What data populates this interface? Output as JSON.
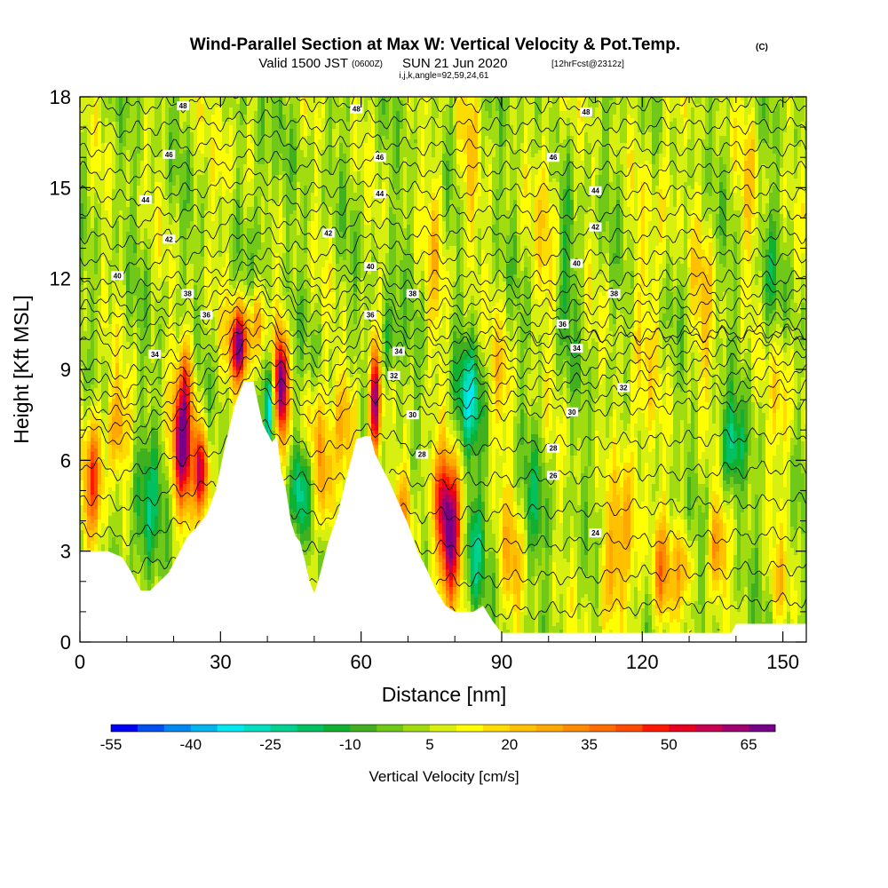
{
  "header": {
    "title": "Wind-Parallel Section at Max W: Vertical Velocity & Pot.Temp.",
    "title_mark": "(C)",
    "valid_prefix": "Valid 1500 JST",
    "valid_z": "(0600Z)",
    "valid_date": "SUN 21 Jun 2020",
    "forecast": "[12hrFcst@2312z]",
    "indices": "i,j,k,angle=92,59,24,61"
  },
  "chart_data": {
    "type": "heatmap",
    "xlabel": "Distance [nm]",
    "ylabel": "Height [Kft MSL]",
    "xlim": [
      0,
      155
    ],
    "ylim": [
      0,
      18
    ],
    "x_ticks": [
      "0",
      "30",
      "60",
      "90",
      "120",
      "150"
    ],
    "x_tick_values": [
      0,
      30,
      60,
      90,
      120,
      150
    ],
    "y_ticks": [
      "0",
      "3",
      "6",
      "9",
      "12",
      "15",
      "18"
    ],
    "y_tick_values": [
      0,
      3,
      6,
      9,
      12,
      15,
      18
    ],
    "terrain": [
      [
        0,
        3.0
      ],
      [
        3,
        3.0
      ],
      [
        6,
        3.0
      ],
      [
        9,
        2.8
      ],
      [
        11,
        2.3
      ],
      [
        13,
        1.7
      ],
      [
        15,
        1.7
      ],
      [
        17,
        2.0
      ],
      [
        19,
        2.3
      ],
      [
        21,
        2.9
      ],
      [
        23,
        3.5
      ],
      [
        25,
        3.8
      ],
      [
        27,
        4.2
      ],
      [
        29,
        5.0
      ],
      [
        31,
        6.5
      ],
      [
        33,
        7.8
      ],
      [
        35,
        8.6
      ],
      [
        37,
        8.6
      ],
      [
        39,
        7.2
      ],
      [
        41,
        6.6
      ],
      [
        42,
        6.8
      ],
      [
        43,
        5.6
      ],
      [
        44,
        5.0
      ],
      [
        45,
        4.0
      ],
      [
        46,
        3.5
      ],
      [
        47,
        3.3
      ],
      [
        48,
        2.7
      ],
      [
        49,
        2.0
      ],
      [
        50,
        1.6
      ],
      [
        51,
        2.1
      ],
      [
        53,
        3.3
      ],
      [
        55,
        4.2
      ],
      [
        57,
        5.5
      ],
      [
        59,
        6.7
      ],
      [
        61,
        6.8
      ],
      [
        62,
        6.8
      ],
      [
        63,
        6.2
      ],
      [
        65,
        5.6
      ],
      [
        66,
        5.3
      ],
      [
        68,
        4.6
      ],
      [
        70,
        3.9
      ],
      [
        72,
        3.0
      ],
      [
        74,
        2.4
      ],
      [
        76,
        1.7
      ],
      [
        78,
        1.2
      ],
      [
        80,
        1.0
      ],
      [
        84,
        1.0
      ],
      [
        86,
        1.2
      ],
      [
        88,
        0.7
      ],
      [
        90,
        0.3
      ],
      [
        100,
        0.3
      ],
      [
        110,
        0.3
      ],
      [
        120,
        0.3
      ],
      [
        130,
        0.3
      ],
      [
        139,
        0.3
      ],
      [
        140,
        0.6
      ],
      [
        150,
        0.6
      ],
      [
        155,
        0.6
      ]
    ],
    "theta_contours": {
      "units": "C",
      "levels": [
        22,
        24,
        26,
        28,
        30,
        32,
        34,
        36,
        38,
        40,
        42,
        44,
        46,
        48
      ],
      "labels": [
        {
          "text": "48",
          "x": 22,
          "y": 17.7
        },
        {
          "text": "48",
          "x": 59,
          "y": 17.6
        },
        {
          "text": "48",
          "x": 108,
          "y": 17.5
        },
        {
          "text": "46",
          "x": 19,
          "y": 16.1
        },
        {
          "text": "46",
          "x": 64,
          "y": 16.0
        },
        {
          "text": "46",
          "x": 101,
          "y": 16.0
        },
        {
          "text": "44",
          "x": 14,
          "y": 14.6
        },
        {
          "text": "44",
          "x": 64,
          "y": 14.8
        },
        {
          "text": "44",
          "x": 110,
          "y": 14.9
        },
        {
          "text": "42",
          "x": 19,
          "y": 13.3
        },
        {
          "text": "42",
          "x": 53,
          "y": 13.5
        },
        {
          "text": "42",
          "x": 110,
          "y": 13.7
        },
        {
          "text": "40",
          "x": 8,
          "y": 12.1
        },
        {
          "text": "40",
          "x": 62,
          "y": 12.4
        },
        {
          "text": "40",
          "x": 106,
          "y": 12.5
        },
        {
          "text": "38",
          "x": 23,
          "y": 11.5
        },
        {
          "text": "38",
          "x": 71,
          "y": 11.5
        },
        {
          "text": "38",
          "x": 114,
          "y": 11.5
        },
        {
          "text": "36",
          "x": 27,
          "y": 10.8
        },
        {
          "text": "36",
          "x": 62,
          "y": 10.8
        },
        {
          "text": "36",
          "x": 103,
          "y": 10.5
        },
        {
          "text": "34",
          "x": 16,
          "y": 9.5
        },
        {
          "text": "34",
          "x": 68,
          "y": 9.6
        },
        {
          "text": "34",
          "x": 106,
          "y": 9.7
        },
        {
          "text": "32",
          "x": 67,
          "y": 8.8
        },
        {
          "text": "32",
          "x": 116,
          "y": 8.4
        },
        {
          "text": "30",
          "x": 71,
          "y": 7.5
        },
        {
          "text": "30",
          "x": 105,
          "y": 7.6
        },
        {
          "text": "28",
          "x": 73,
          "y": 6.2
        },
        {
          "text": "28",
          "x": 101,
          "y": 6.4
        },
        {
          "text": "26",
          "x": 101,
          "y": 5.5
        },
        {
          "text": "24",
          "x": 110,
          "y": 3.6
        }
      ]
    },
    "colorbar": {
      "title": "Vertical Velocity [cm/s]",
      "labels": [
        "-55",
        "-40",
        "-25",
        "-10",
        "5",
        "20",
        "35",
        "50",
        "65"
      ],
      "bins": [
        -55,
        -50,
        -45,
        -40,
        -35,
        -30,
        -25,
        -20,
        -15,
        -10,
        -5,
        0,
        5,
        10,
        15,
        20,
        25,
        30,
        35,
        40,
        45,
        50,
        55,
        60,
        65,
        70
      ],
      "colors": [
        "#0000f4",
        "#0050f0",
        "#0088f0",
        "#00b4f0",
        "#00e8f0",
        "#00e0c0",
        "#00d090",
        "#00c060",
        "#10b030",
        "#40b020",
        "#70c818",
        "#a0dc10",
        "#d8f010",
        "#ffff00",
        "#ffdc00",
        "#ffc000",
        "#ffa800",
        "#ff8c00",
        "#ff6c00",
        "#ff4a00",
        "#ff1800",
        "#e80020",
        "#c80050",
        "#a00070",
        "#780088"
      ]
    },
    "w_features": [
      {
        "x": 3,
        "z": 5.5,
        "w": 38,
        "sx": 2.0,
        "sz": 2.2
      },
      {
        "x": 8,
        "z": 7.0,
        "w": 24,
        "sx": 2.5,
        "sz": 1.5
      },
      {
        "x": 14,
        "z": 4.0,
        "w": -22,
        "sx": 3.0,
        "sz": 2.2
      },
      {
        "x": 22,
        "z": 6.5,
        "w": 58,
        "sx": 2.2,
        "sz": 2.2
      },
      {
        "x": 26,
        "z": 5.6,
        "w": 52,
        "sx": 1.5,
        "sz": 1.5
      },
      {
        "x": 23,
        "z": 8.8,
        "w": 22,
        "sx": 1.8,
        "sz": 1.5
      },
      {
        "x": 34,
        "z": 9.8,
        "w": 62,
        "sx": 2.0,
        "sz": 1.3
      },
      {
        "x": 38,
        "z": 10.6,
        "w": 22,
        "sx": 2.0,
        "sz": 1.2
      },
      {
        "x": 40.5,
        "z": 7.8,
        "w": -45,
        "sx": 0.8,
        "sz": 1.4
      },
      {
        "x": 43,
        "z": 8.6,
        "w": 62,
        "sx": 1.4,
        "sz": 1.8
      },
      {
        "x": 47,
        "z": 5.0,
        "w": -30,
        "sx": 2.0,
        "sz": 1.8
      },
      {
        "x": 52,
        "z": 5.0,
        "w": 26,
        "sx": 2.0,
        "sz": 1.8
      },
      {
        "x": 50,
        "z": 7.2,
        "w": 18,
        "sx": 2.5,
        "sz": 1.5
      },
      {
        "x": 57,
        "z": 7.5,
        "w": 22,
        "sx": 2.5,
        "sz": 1.5
      },
      {
        "x": 63,
        "z": 7.8,
        "w": 62,
        "sx": 1.3,
        "sz": 1.8
      },
      {
        "x": 66,
        "z": 9.8,
        "w": -18,
        "sx": 2.0,
        "sz": 1.5
      },
      {
        "x": 69,
        "z": 4.2,
        "w": 24,
        "sx": 2.0,
        "sz": 1.5
      },
      {
        "x": 79,
        "z": 3.3,
        "w": 58,
        "sx": 2.5,
        "sz": 2.0
      },
      {
        "x": 77,
        "z": 4.8,
        "w": 32,
        "sx": 3.0,
        "sz": 1.5
      },
      {
        "x": 84,
        "z": 3.0,
        "w": -24,
        "sx": 2.0,
        "sz": 2.0
      },
      {
        "x": 83,
        "z": 8.0,
        "w": -26,
        "sx": 3.0,
        "sz": 1.8
      },
      {
        "x": 90,
        "z": 8.5,
        "w": 12,
        "sx": 2.5,
        "sz": 2.5
      },
      {
        "x": 92,
        "z": 2.5,
        "w": 18,
        "sx": 2.5,
        "sz": 2.0
      },
      {
        "x": 97,
        "z": 4.5,
        "w": -12,
        "sx": 2.5,
        "sz": 2.0
      },
      {
        "x": 100,
        "z": 14.0,
        "w": 14,
        "sx": 2.5,
        "sz": 3.5
      },
      {
        "x": 104,
        "z": 12.5,
        "w": -12,
        "sx": 2.0,
        "sz": 3.0
      },
      {
        "x": 113,
        "z": 2.0,
        "w": 22,
        "sx": 2.5,
        "sz": 1.8
      },
      {
        "x": 117,
        "z": 4.5,
        "w": 14,
        "sx": 3.0,
        "sz": 3.0
      },
      {
        "x": 120,
        "z": 9.0,
        "w": 10,
        "sx": 3.0,
        "sz": 5.0
      },
      {
        "x": 124,
        "z": 2.2,
        "w": 30,
        "sx": 2.0,
        "sz": 1.8
      },
      {
        "x": 129,
        "z": 2.3,
        "w": 20,
        "sx": 2.0,
        "sz": 1.5
      },
      {
        "x": 133,
        "z": 11.0,
        "w": 14,
        "sx": 2.5,
        "sz": 3.0
      },
      {
        "x": 136,
        "z": 3.0,
        "w": 28,
        "sx": 2.0,
        "sz": 1.5
      },
      {
        "x": 139,
        "z": 6.3,
        "w": -24,
        "sx": 2.5,
        "sz": 1.5
      },
      {
        "x": 130,
        "z": 1.2,
        "w": -12,
        "sx": 1.5,
        "sz": 1.0
      },
      {
        "x": 143,
        "z": 15.0,
        "w": 12,
        "sx": 2.0,
        "sz": 3.0
      },
      {
        "x": 147,
        "z": 12.0,
        "w": -12,
        "sx": 2.0,
        "sz": 2.0
      },
      {
        "x": 150,
        "z": 8.0,
        "w": 14,
        "sx": 2.5,
        "sz": 2.5
      },
      {
        "x": 149,
        "z": 1.8,
        "w": 14,
        "sx": 2.0,
        "sz": 1.2
      },
      {
        "x": 76,
        "z": 13.0,
        "w": 12,
        "sx": 2.0,
        "sz": 4.0
      },
      {
        "x": 83,
        "z": 15.5,
        "w": 14,
        "sx": 2.0,
        "sz": 3.0
      },
      {
        "x": 125,
        "z": 15.0,
        "w": 12,
        "sx": 2.0,
        "sz": 3.0
      },
      {
        "x": 39,
        "z": 15.0,
        "w": -12,
        "sx": 1.5,
        "sz": 3.0
      },
      {
        "x": 31,
        "z": 16.0,
        "w": 10,
        "sx": 2.0,
        "sz": 2.5
      }
    ]
  }
}
